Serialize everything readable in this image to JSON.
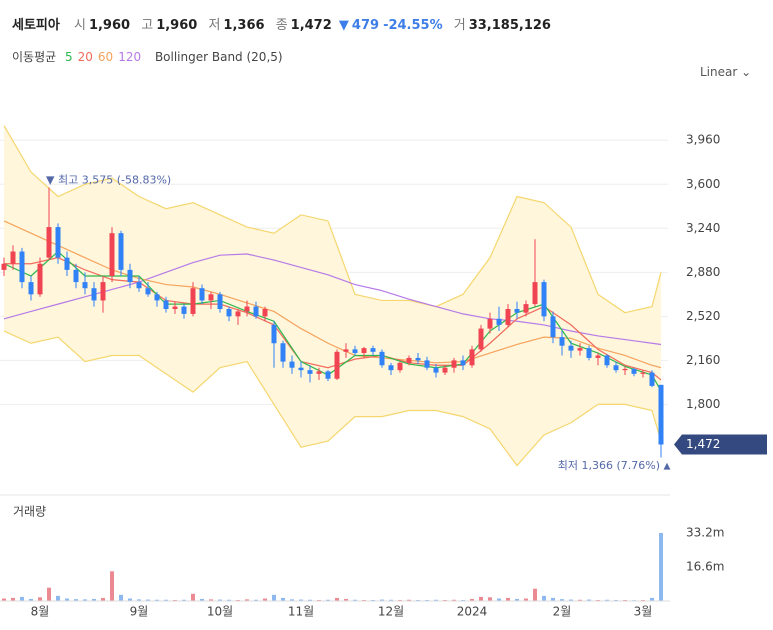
{
  "header": {
    "name": "세토피아",
    "fields": [
      {
        "label": "시",
        "value": "1,960"
      },
      {
        "label": "고",
        "value": "1,960"
      },
      {
        "label": "저",
        "value": "1,366"
      },
      {
        "label": "종",
        "value": "1,472"
      }
    ],
    "change": "479",
    "change_pct": "-24.55%",
    "volume_label": "거",
    "volume": "33,185,126"
  },
  "legend_title": "이동평균",
  "scale_button": "Linear",
  "chart_data": {
    "type": "candlestick",
    "categories": [
      null,
      null,
      null,
      null,
      "8월",
      null,
      null,
      null,
      null,
      null,
      null,
      null,
      null,
      null,
      null,
      "9월",
      null,
      null,
      null,
      null,
      null,
      null,
      null,
      null,
      "10월",
      null,
      null,
      null,
      null,
      null,
      null,
      null,
      null,
      "11월",
      null,
      null,
      null,
      null,
      null,
      null,
      null,
      null,
      null,
      "12월",
      null,
      null,
      null,
      null,
      null,
      null,
      null,
      null,
      "2024",
      null,
      null,
      null,
      null,
      null,
      null,
      null,
      null,
      null,
      "2월",
      null,
      null,
      null,
      null,
      null,
      null,
      null,
      null,
      "3월",
      null,
      null
    ],
    "candles": [
      [
        2900,
        3000,
        2850,
        2950
      ],
      [
        2950,
        3100,
        2900,
        3050
      ],
      [
        3050,
        3080,
        2750,
        2800
      ],
      [
        2800,
        2850,
        2650,
        2700
      ],
      [
        2700,
        3000,
        2680,
        2950
      ],
      [
        3000,
        3575,
        2980,
        3250
      ],
      [
        3250,
        3280,
        2950,
        3000
      ],
      [
        3000,
        3050,
        2850,
        2900
      ],
      [
        2900,
        2950,
        2750,
        2800
      ],
      [
        2800,
        2880,
        2700,
        2750
      ],
      [
        2750,
        2800,
        2600,
        2650
      ],
      [
        2650,
        2850,
        2550,
        2800
      ],
      [
        2850,
        3250,
        2800,
        3200
      ],
      [
        3200,
        3220,
        2850,
        2900
      ],
      [
        2900,
        2950,
        2750,
        2800
      ],
      [
        2800,
        2850,
        2720,
        2750
      ],
      [
        2750,
        2800,
        2680,
        2700
      ],
      [
        2700,
        2720,
        2600,
        2650
      ],
      [
        2650,
        2680,
        2550,
        2580
      ],
      [
        2580,
        2640,
        2540,
        2600
      ],
      [
        2600,
        2620,
        2500,
        2540
      ],
      [
        2540,
        2800,
        2520,
        2750
      ],
      [
        2750,
        2780,
        2620,
        2650
      ],
      [
        2650,
        2720,
        2580,
        2700
      ],
      [
        2700,
        2720,
        2550,
        2580
      ],
      [
        2580,
        2600,
        2480,
        2520
      ],
      [
        2520,
        2580,
        2450,
        2560
      ],
      [
        2560,
        2650,
        2520,
        2600
      ],
      [
        2600,
        2640,
        2500,
        2520
      ],
      [
        2520,
        2600,
        2480,
        2580
      ],
      [
        2450,
        2480,
        2100,
        2300
      ],
      [
        2300,
        2320,
        2100,
        2150
      ],
      [
        2150,
        2200,
        2050,
        2100
      ],
      [
        2100,
        2150,
        2020,
        2080
      ],
      [
        2080,
        2120,
        1980,
        2050
      ],
      [
        2050,
        2100,
        2000,
        2070
      ],
      [
        2070,
        2080,
        1990,
        2010
      ],
      [
        2010,
        2250,
        2000,
        2230
      ],
      [
        2230,
        2300,
        2180,
        2250
      ],
      [
        2250,
        2280,
        2200,
        2220
      ],
      [
        2220,
        2270,
        2180,
        2260
      ],
      [
        2260,
        2280,
        2200,
        2230
      ],
      [
        2230,
        2250,
        2100,
        2120
      ],
      [
        2120,
        2140,
        2040,
        2080
      ],
      [
        2080,
        2150,
        2060,
        2140
      ],
      [
        2140,
        2200,
        2120,
        2180
      ],
      [
        2180,
        2220,
        2130,
        2160
      ],
      [
        2160,
        2190,
        2080,
        2100
      ],
      [
        2100,
        2130,
        2020,
        2060
      ],
      [
        2060,
        2120,
        2040,
        2100
      ],
      [
        2100,
        2180,
        2060,
        2160
      ],
      [
        2160,
        2200,
        2080,
        2120
      ],
      [
        2120,
        2280,
        2100,
        2250
      ],
      [
        2250,
        2450,
        2230,
        2420
      ],
      [
        2420,
        2550,
        2380,
        2500
      ],
      [
        2500,
        2600,
        2400,
        2450
      ],
      [
        2450,
        2620,
        2430,
        2580
      ],
      [
        2580,
        2640,
        2500,
        2550
      ],
      [
        2550,
        2650,
        2520,
        2620
      ],
      [
        2620,
        3150,
        2600,
        2800
      ],
      [
        2800,
        2820,
        2480,
        2520
      ],
      [
        2520,
        2560,
        2300,
        2350
      ],
      [
        2350,
        2400,
        2200,
        2280
      ],
      [
        2280,
        2320,
        2180,
        2240
      ],
      [
        2240,
        2300,
        2200,
        2260
      ],
      [
        2260,
        2280,
        2160,
        2180
      ],
      [
        2180,
        2220,
        2120,
        2200
      ],
      [
        2200,
        2210,
        2100,
        2120
      ],
      [
        2120,
        2150,
        2060,
        2080
      ],
      [
        2080,
        2110,
        2040,
        2090
      ],
      [
        2090,
        2100,
        2030,
        2050
      ],
      [
        2050,
        2080,
        2020,
        2060
      ],
      [
        2060,
        2080,
        1940,
        1951
      ],
      [
        1960,
        1960,
        1366,
        1472
      ]
    ],
    "up_color": "#f04452",
    "down_color": "#3182f6",
    "ylim": [
      1100,
      4330
    ],
    "yticks": [
      {
        "value": 1800,
        "label": "1,800"
      },
      {
        "value": 2160,
        "label": "2,160"
      },
      {
        "value": 2520,
        "label": "2,520"
      },
      {
        "value": 2880,
        "label": "2,880"
      },
      {
        "value": 3240,
        "label": "3,240"
      },
      {
        "value": 3600,
        "label": "3,600"
      },
      {
        "value": 3960,
        "label": "3,960"
      }
    ],
    "grid": true,
    "last_price": {
      "value": 1472,
      "label": "1,472"
    },
    "overlays": {
      "x": [
        0,
        3,
        6,
        9,
        12,
        15,
        18,
        21,
        24,
        27,
        30,
        33,
        36,
        39,
        42,
        45,
        48,
        51,
        54,
        57,
        60,
        63,
        66,
        69,
        72,
        73
      ],
      "band": {
        "name": "Bollinger Band (20,5)",
        "color": "#f5d76e",
        "fill": "#fff6dc",
        "upper": [
          4080,
          3700,
          3500,
          3600,
          3650,
          3500,
          3400,
          3450,
          3350,
          3250,
          3200,
          3350,
          3300,
          2700,
          2650,
          2650,
          2600,
          2700,
          3000,
          3500,
          3450,
          3250,
          2700,
          2550,
          2600,
          2880
        ],
        "lower": [
          2400,
          2300,
          2350,
          2150,
          2200,
          2200,
          2050,
          1900,
          2100,
          2150,
          1800,
          1450,
          1500,
          1700,
          1700,
          1750,
          1750,
          1700,
          1600,
          1300,
          1550,
          1650,
          1800,
          1800,
          1750,
          1500
        ]
      },
      "series": [
        {
          "name": "5",
          "color": "#2db84d",
          "values": [
            2950,
            2850,
            3050,
            2850,
            2850,
            2850,
            2620,
            2620,
            2650,
            2560,
            2480,
            2150,
            2040,
            2200,
            2200,
            2130,
            2100,
            2130,
            2400,
            2550,
            2620,
            2300,
            2220,
            2110,
            2040,
            1910
          ]
        },
        {
          "name": "20",
          "color": "#f26b5b",
          "values": [
            2950,
            2950,
            3000,
            2900,
            2820,
            2800,
            2650,
            2620,
            2620,
            2550,
            2450,
            2150,
            2100,
            2170,
            2200,
            2140,
            2120,
            2120,
            2300,
            2500,
            2600,
            2450,
            2250,
            2120,
            2060,
            2000
          ]
        },
        {
          "name": "60",
          "color": "#f5a35c",
          "values": [
            3300,
            3200,
            3100,
            3000,
            2900,
            2830,
            2780,
            2760,
            2700,
            2630,
            2560,
            2420,
            2300,
            2200,
            2180,
            2160,
            2140,
            2150,
            2220,
            2290,
            2350,
            2340,
            2260,
            2200,
            2120,
            2100
          ]
        },
        {
          "name": "120",
          "color": "#b67ae8",
          "values": [
            2500,
            2560,
            2620,
            2680,
            2740,
            2800,
            2880,
            2960,
            3020,
            3030,
            2980,
            2920,
            2860,
            2780,
            2730,
            2660,
            2600,
            2540,
            2500,
            2480,
            2450,
            2400,
            2360,
            2330,
            2300,
            2290
          ]
        }
      ]
    },
    "annotations": [
      {
        "label": "최고",
        "price": "3,575",
        "change": "(-58.83%)",
        "value": 3575
      },
      {
        "label": "최저",
        "price": "1,366",
        "change": "(7.76%)",
        "value": 1366
      }
    ],
    "volume": {
      "title": "거래량",
      "up_color": "#ec8a93",
      "down_color": "#8db8f0",
      "values": [
        1.2,
        1.5,
        2.0,
        1.0,
        1.8,
        6.5,
        2.5,
        1.2,
        0.9,
        0.8,
        1.0,
        1.5,
        14.5,
        3.0,
        1.2,
        0.8,
        0.7,
        0.6,
        0.6,
        0.5,
        0.6,
        3.5,
        1.0,
        0.8,
        0.7,
        0.6,
        0.5,
        0.8,
        0.6,
        1.2,
        3.0,
        1.5,
        0.8,
        0.7,
        0.6,
        0.5,
        0.6,
        1.5,
        1.0,
        0.6,
        0.5,
        0.5,
        0.7,
        0.6,
        0.5,
        0.6,
        0.5,
        0.5,
        0.6,
        0.5,
        0.6,
        0.5,
        1.0,
        2.0,
        1.8,
        1.2,
        1.5,
        1.0,
        1.2,
        6.0,
        2.5,
        1.5,
        0.9,
        0.7,
        0.6,
        0.7,
        0.5,
        0.6,
        0.5,
        0.5,
        0.4,
        0.5,
        1.5,
        33.2
      ],
      "ylim": [
        0,
        49.3
      ],
      "yticks": [
        {
          "value": 16.6,
          "label": "16.6m"
        },
        {
          "value": 33.2,
          "label": "33.2m"
        }
      ]
    }
  }
}
